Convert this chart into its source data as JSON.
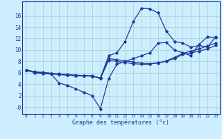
{
  "xlabel": "Graphe des températures (°c)",
  "background_color": "#cceeff",
  "grid_color": "#aacccc",
  "line_color": "#1a3a9e",
  "hours": [
    0,
    1,
    2,
    3,
    4,
    5,
    6,
    7,
    8,
    9,
    10,
    11,
    12,
    13,
    14,
    15,
    16,
    17,
    18,
    19,
    20,
    21,
    22,
    23
  ],
  "line1": [
    6.5,
    6.2,
    6.1,
    5.9,
    5.8,
    5.7,
    5.6,
    5.5,
    5.5,
    5.0,
    8.2,
    8.0,
    7.8,
    7.6,
    7.5,
    7.5,
    7.8,
    8.0,
    8.5,
    9.2,
    9.5,
    9.8,
    10.2,
    10.8
  ],
  "line2": [
    6.5,
    6.1,
    6.0,
    5.9,
    5.7,
    5.6,
    5.5,
    5.5,
    5.4,
    5.1,
    8.5,
    8.3,
    8.1,
    7.9,
    7.7,
    7.6,
    7.7,
    8.1,
    8.7,
    9.4,
    9.8,
    10.2,
    10.7,
    11.2
  ],
  "line3": [
    6.5,
    6.1,
    6.0,
    5.8,
    4.2,
    3.8,
    3.2,
    2.6,
    2.0,
    -0.3,
    5.0,
    7.5,
    8.0,
    8.5,
    9.0,
    9.5,
    11.2,
    11.3,
    10.0,
    9.5,
    9.0,
    11.0,
    12.3,
    12.2
  ],
  "line4": [
    6.5,
    6.0,
    5.9,
    5.8,
    5.7,
    5.6,
    5.5,
    5.5,
    5.4,
    5.1,
    9.0,
    9.5,
    11.5,
    15.0,
    17.3,
    17.2,
    16.5,
    13.3,
    11.5,
    11.2,
    10.5,
    10.8,
    10.5,
    12.3
  ],
  "ylim": [
    -1.2,
    18.5
  ],
  "xlim": [
    -0.5,
    23.5
  ],
  "yticks": [
    0,
    2,
    4,
    6,
    8,
    10,
    12,
    14,
    16
  ],
  "ytick_labels": [
    "-0",
    "2",
    "4",
    "6",
    "8",
    "10",
    "12",
    "14",
    "16"
  ]
}
